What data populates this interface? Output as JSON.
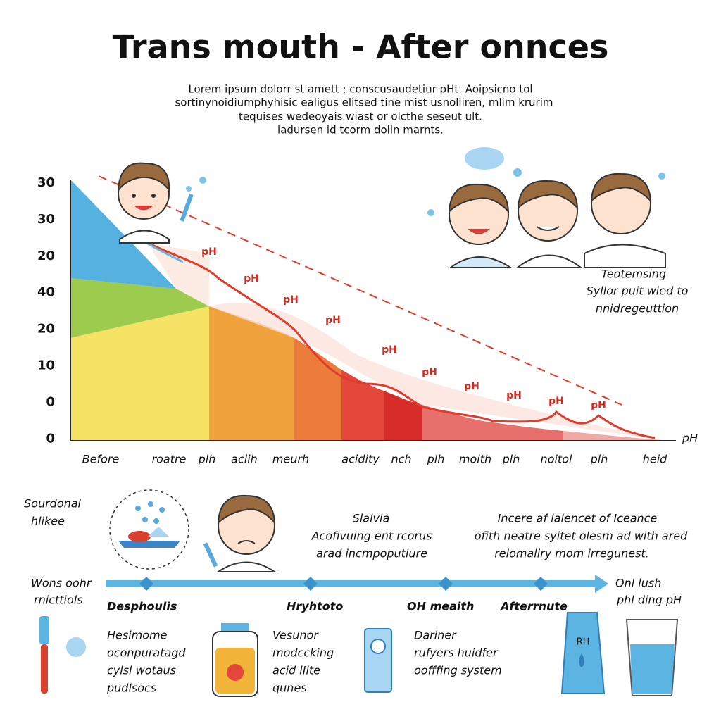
{
  "header": {
    "title": "Trans mouth - After onnces",
    "description": [
      "Lorem ipsum dolorr st amett ; conscusaudetiur pHt. Aoipsicno tol",
      "sortinynoidiumphyhisic ealigus elitsed tine mist usnolliren, mlim krurim",
      "tequises wedeoyais wiast or olcthe seseut ult.",
      "iadursen id tcorm dolin marnts."
    ]
  },
  "chart": {
    "y_labels": [
      30,
      30,
      20,
      40,
      20,
      10,
      0,
      0
    ],
    "x_labels": [
      "Before",
      "roatre",
      "plh",
      "aclih",
      "meurh",
      "acidity",
      "nch",
      "plh",
      "moith",
      "plh",
      "noitol",
      "plh",
      "heid"
    ],
    "curve_labels": [
      "pH",
      "pH",
      "pH",
      "pH",
      "pH",
      "pH",
      "pH",
      "pH",
      "pH",
      "pH"
    ],
    "axis_end": "pH",
    "side_note": [
      "Teotemsing",
      "Syllor puit wied to",
      "nnidregeuttion"
    ]
  },
  "bottom": {
    "left_top": [
      "Sourdonal",
      "hlikee"
    ],
    "left_mid": [
      "Wons oohr",
      "rnicttiols"
    ],
    "middle": [
      "Slalvia",
      "Acofivuing ent rcorus",
      "arad incmpoputiure"
    ],
    "right": [
      "Incere af lalencet of Iceance",
      "ofith neatre syitet olesm ad with ared",
      "relomaliry mom irregunest."
    ],
    "timeline": [
      "Desphoulis",
      "Hryhtoto",
      "OH meaith",
      "Afterrnute"
    ],
    "end_label": [
      "Onl lush",
      "phl ding pH"
    ],
    "notes": [
      [
        "Hesimome",
        "oconpuratagd",
        "cylsl wotaus",
        "pudlsocs"
      ],
      [
        "Vesunor",
        "modccking",
        "acid lIite",
        "qunes"
      ],
      [
        "Dariner",
        "rufyers huidfer",
        "oofffing system"
      ]
    ],
    "tube_label": "RH"
  }
}
